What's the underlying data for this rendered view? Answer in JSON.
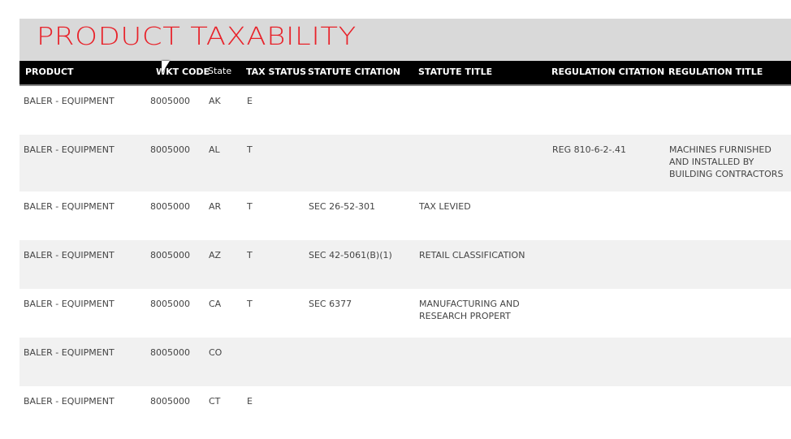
{
  "title": "PRODUCT TAXABILITY",
  "columns": [
    "PRODUCT",
    "WKT CODE",
    "State",
    "TAX STATUS",
    "STATUTE CITATION",
    "STATUTE TITLE",
    "REGULATION CITATION",
    "REGULATION TITLE"
  ],
  "rows": [
    {
      "product": "BALER - EQUIPMENT",
      "code": "8005000",
      "state": "AK",
      "status": "E",
      "stat_cit": "",
      "stat_title": "",
      "reg_cit": "",
      "reg_title": ""
    },
    {
      "product": "BALER - EQUIPMENT",
      "code": "8005000",
      "state": "AL",
      "status": "T",
      "stat_cit": "",
      "stat_title": "",
      "reg_cit": "REG 810-6-2-.41",
      "reg_title": "MACHINES FURNISHED AND INSTALLED BY BUILDING CONTRACTORS"
    },
    {
      "product": "BALER - EQUIPMENT",
      "code": "8005000",
      "state": "AR",
      "status": "T",
      "stat_cit": "SEC 26-52-301",
      "stat_title": "TAX LEVIED",
      "reg_cit": "",
      "reg_title": ""
    },
    {
      "product": "BALER - EQUIPMENT",
      "code": "8005000",
      "state": "AZ",
      "status": "T",
      "stat_cit": "SEC 42-5061(B)(1)",
      "stat_title": "RETAIL CLASSIFICATION",
      "reg_cit": "",
      "reg_title": ""
    },
    {
      "product": "BALER - EQUIPMENT",
      "code": "8005000",
      "state": "CA",
      "status": "T",
      "stat_cit": "SEC 6377",
      "stat_title": "MANUFACTURING AND RESEARCH PROPERT",
      "reg_cit": "",
      "reg_title": ""
    },
    {
      "product": "BALER - EQUIPMENT",
      "code": "8005000",
      "state": "CO",
      "status": "",
      "stat_cit": "",
      "stat_title": "",
      "reg_cit": "",
      "reg_title": ""
    },
    {
      "product": "BALER - EQUIPMENT",
      "code": "8005000",
      "state": "CT",
      "status": "E",
      "stat_cit": "",
      "stat_title": "",
      "reg_cit": "",
      "reg_title": ""
    }
  ]
}
